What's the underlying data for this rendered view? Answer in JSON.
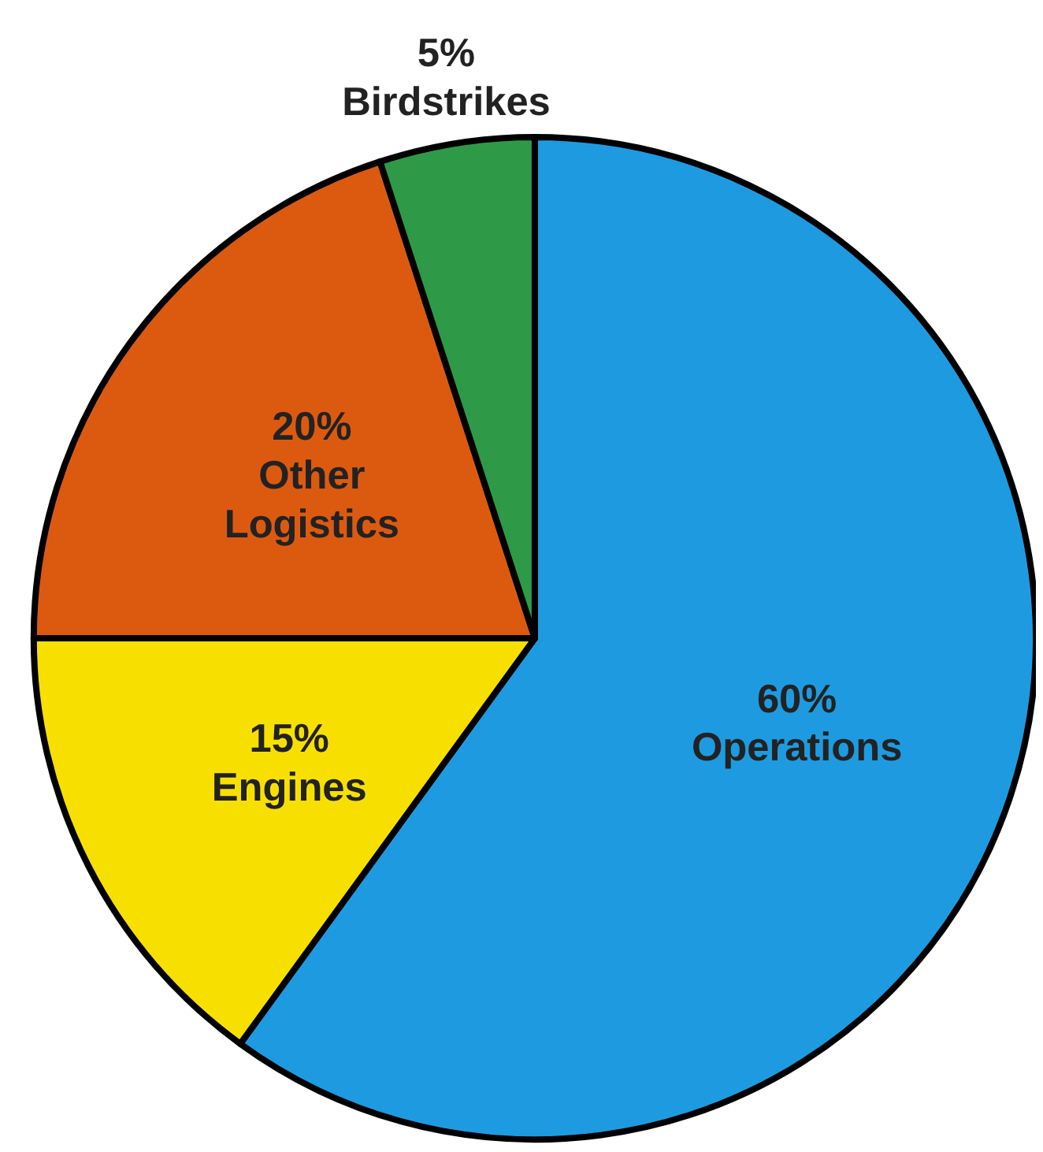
{
  "chart_data": {
    "type": "pie",
    "categories": [
      "Operations",
      "Engines",
      "Other Logistics",
      "Birdstrikes"
    ],
    "values": [
      60,
      15,
      20,
      5
    ],
    "colors": [
      "#1e9be0",
      "#f7e000",
      "#dc5a10",
      "#2e9a48"
    ],
    "value_labels": [
      "60%",
      "15%",
      "20%",
      "5%"
    ]
  }
}
